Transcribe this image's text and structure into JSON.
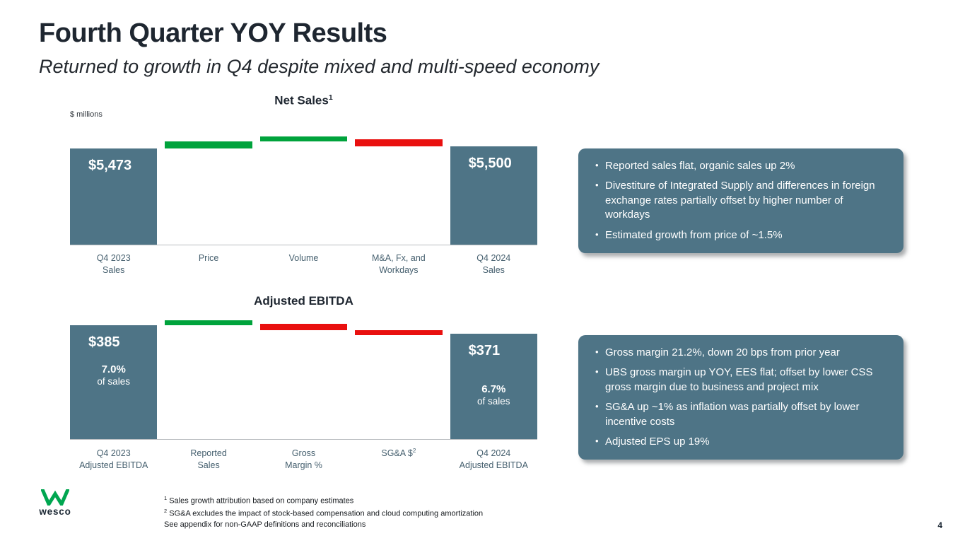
{
  "slide": {
    "title": "Fourth Quarter YOY Results",
    "subtitle": "Returned to growth in Q4 despite mixed and multi-speed economy",
    "page_number": "4"
  },
  "logo": {
    "brand": "wesco"
  },
  "chart_data": [
    {
      "type": "bar",
      "subtype": "waterfall",
      "title": "Net Sales",
      "title_sup": "1",
      "units": "$ millions",
      "columns": [
        {
          "role": "total",
          "lines": [
            "Q4 2023",
            "Sales"
          ],
          "value": 5473,
          "display": "$5,473"
        },
        {
          "role": "delta",
          "lines": [
            "Price"
          ],
          "value": 82
        },
        {
          "role": "delta",
          "lines": [
            "Volume"
          ],
          "value": 27
        },
        {
          "role": "delta",
          "lines": [
            "M&A, Fx, and",
            "Workdays"
          ],
          "value": -82
        },
        {
          "role": "total",
          "lines": [
            "Q4 2024",
            "Sales"
          ],
          "value": 5500,
          "display": "$5,500"
        }
      ]
    },
    {
      "type": "bar",
      "subtype": "waterfall",
      "title": "Adjusted EBITDA",
      "units": "",
      "columns": [
        {
          "role": "total",
          "lines": [
            "Q4 2023",
            "Adjusted EBITDA"
          ],
          "value": 385,
          "display": "$385",
          "sub": [
            "7.0%",
            "of sales"
          ]
        },
        {
          "role": "delta",
          "lines": [
            "Reported",
            "Sales"
          ],
          "value": 2
        },
        {
          "role": "delta",
          "lines": [
            "Gross",
            "Margin %"
          ],
          "value": -10
        },
        {
          "role": "delta",
          "lines": [
            "SG&A $"
          ],
          "sup": "2",
          "value": -6
        },
        {
          "role": "total",
          "lines": [
            "Q4 2024",
            "Adjusted EBITDA"
          ],
          "value": 371,
          "display": "$371",
          "sub": [
            "6.7%",
            "of sales"
          ]
        }
      ]
    }
  ],
  "callouts": {
    "net_sales": {
      "bullets": [
        "Reported sales flat, organic sales up 2%",
        "Divestiture of Integrated Supply and differences in foreign exchange rates partially offset by higher number of workdays",
        "Estimated growth from price of ~1.5%"
      ]
    },
    "adjusted_ebitda": {
      "bullets": [
        "Gross margin 21.2%, down 20 bps from prior year",
        "UBS gross margin up YOY, EES flat; offset by lower CSS gross margin due to business and project mix",
        "SG&A up ~1% as inflation was partially offset by lower incentive costs",
        "Adjusted EPS up 19%"
      ]
    }
  },
  "footnotes": [
    {
      "sup": "1",
      "text": "Sales growth attribution based on company estimates"
    },
    {
      "sup": "2",
      "text": "SG&A excludes the impact of stock-based compensation and cloud computing amortization"
    },
    {
      "sup": "",
      "text": "See appendix for non-GAAP definitions and reconciliations"
    }
  ],
  "colors": {
    "bar_slate": "#4e7486",
    "positive_green": "#00a33c",
    "negative_red": "#e9100f",
    "callout_bg": "#4e7486",
    "logo_green": "#00a650"
  }
}
